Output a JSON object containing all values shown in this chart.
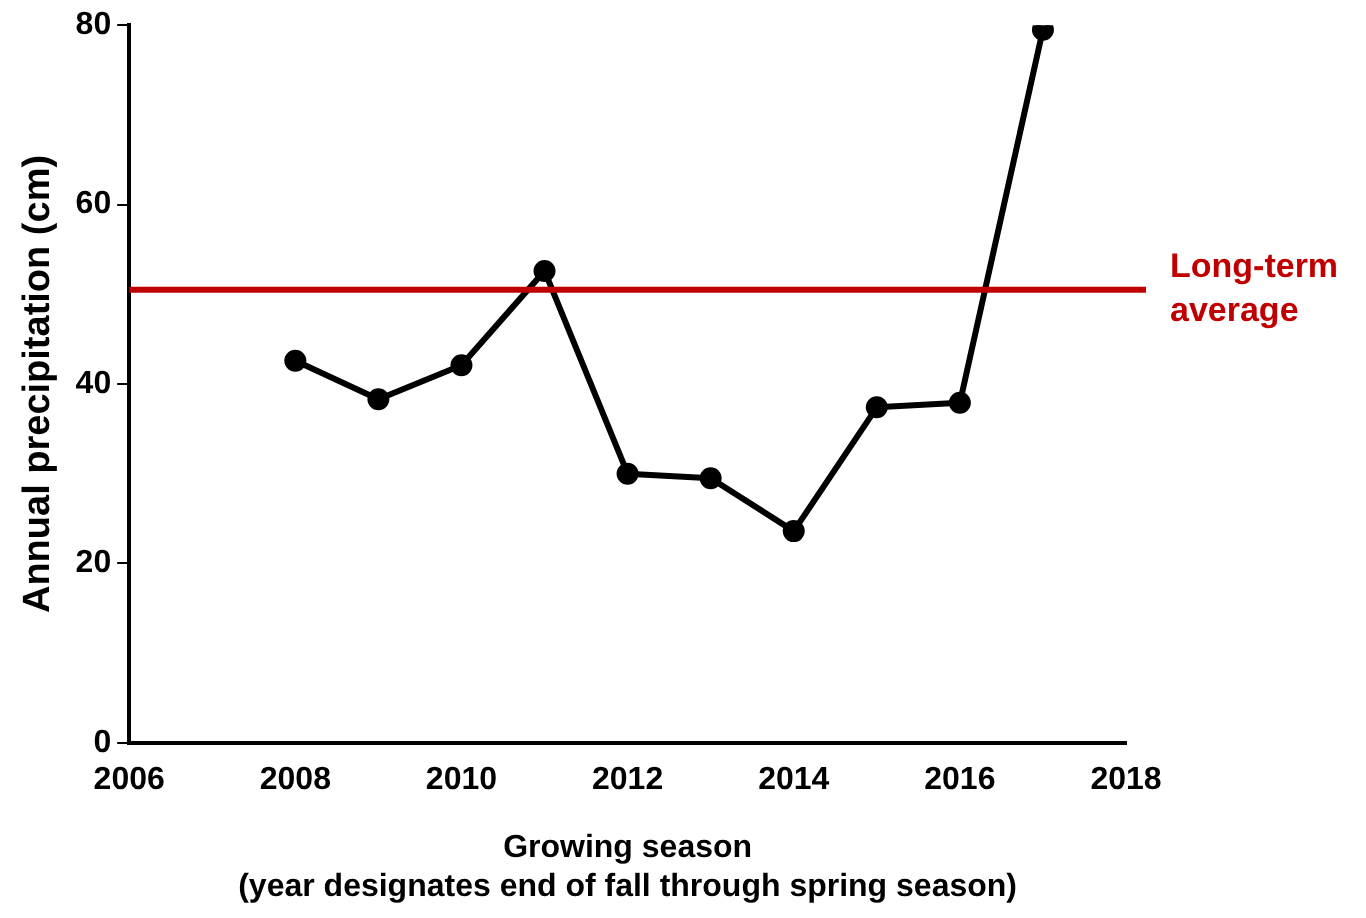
{
  "chart_data": {
    "type": "line",
    "xlabel": "Growing season\n(year designates end of fall through spring season)",
    "ylabel": "Annual precipitation (cm)",
    "x": [
      2008,
      2009,
      2010,
      2011,
      2012,
      2013,
      2014,
      2015,
      2016,
      2017
    ],
    "series": [
      {
        "color": "#000000",
        "values": [
          42.6,
          38.3,
          42.1,
          52.6,
          30.0,
          29.5,
          23.6,
          37.4,
          37.9,
          79.5
        ]
      }
    ],
    "xlim": [
      2006,
      2018
    ],
    "xticks": [
      2006,
      2008,
      2010,
      2012,
      2014,
      2016,
      2018
    ],
    "ylim": [
      0,
      80
    ],
    "yticks": [
      0,
      20,
      40,
      60,
      80
    ],
    "ref_lines": [
      {
        "axis": "y",
        "value": 50.5,
        "label": "Long-term\naverage",
        "color": "#c00000"
      }
    ],
    "grid": false,
    "legend": false,
    "marker": "circle",
    "line_style": "solid"
  }
}
